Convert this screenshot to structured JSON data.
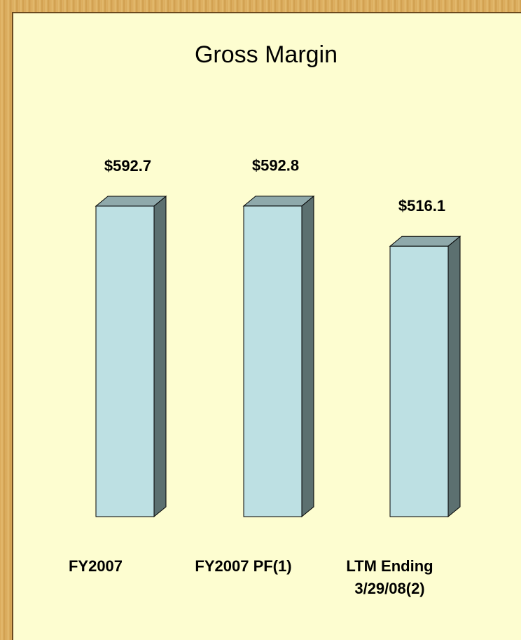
{
  "chart_data": {
    "type": "bar3d",
    "title": "Gross Margin",
    "categories": [
      "FY2007",
      "FY2007 PF(1)",
      "LTM Ending 3/29/08(2)"
    ],
    "values": [
      592.7,
      592.8,
      516.1
    ],
    "value_labels": [
      "$592.7",
      "$592.8",
      "$516.1"
    ],
    "color": "#bde0e3"
  }
}
